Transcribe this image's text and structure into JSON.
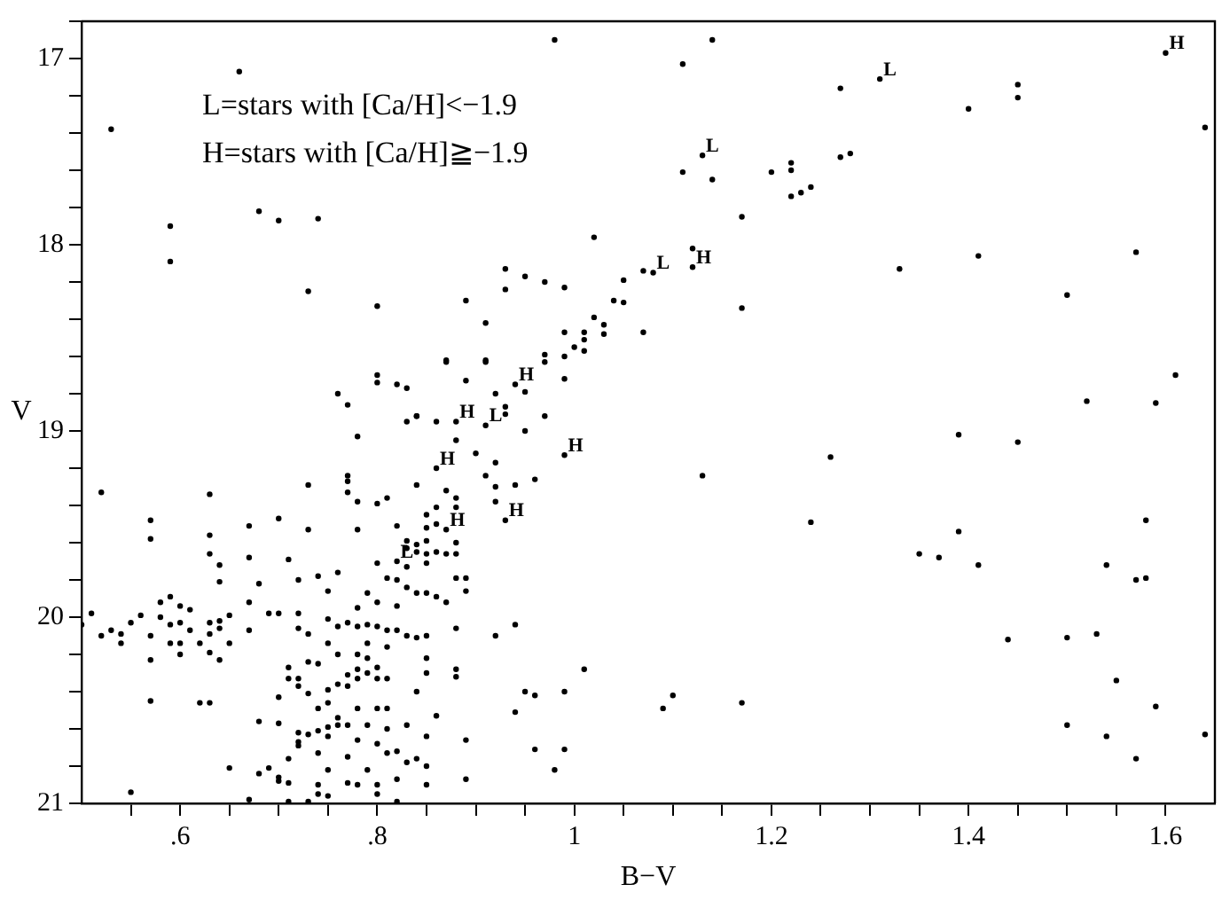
{
  "chart_data": {
    "type": "scatter",
    "xlabel": "B−V",
    "ylabel": "V",
    "color": "#000000",
    "marker": "circle",
    "grid": false,
    "legend": false,
    "xlim": [
      0.5,
      1.65
    ],
    "ylim": [
      21,
      16.8
    ],
    "xticks": [
      {
        "value": 0.55,
        "label": null
      },
      {
        "value": 0.6,
        "label": ".6"
      },
      {
        "value": 0.65,
        "label": null
      },
      {
        "value": 0.7,
        "label": null
      },
      {
        "value": 0.75,
        "label": null
      },
      {
        "value": 0.8,
        "label": ".8"
      },
      {
        "value": 0.85,
        "label": null
      },
      {
        "value": 0.9,
        "label": null
      },
      {
        "value": 0.95,
        "label": null
      },
      {
        "value": 1,
        "label": "1"
      },
      {
        "value": 1.05,
        "label": null
      },
      {
        "value": 1.1,
        "label": null
      },
      {
        "value": 1.15,
        "label": null
      },
      {
        "value": 1.2,
        "label": "1.2"
      },
      {
        "value": 1.25,
        "label": null
      },
      {
        "value": 1.3,
        "label": null
      },
      {
        "value": 1.35,
        "label": null
      },
      {
        "value": 1.4,
        "label": "1.4"
      },
      {
        "value": 1.45,
        "label": null
      },
      {
        "value": 1.5,
        "label": null
      },
      {
        "value": 1.55,
        "label": null
      },
      {
        "value": 1.6,
        "label": "1.6"
      }
    ],
    "yticks": [
      {
        "value": 16.8,
        "label": null
      },
      17,
      {
        "value": 17.2,
        "label": null
      },
      {
        "value": 17.4,
        "label": null
      },
      {
        "value": 17.6,
        "label": null
      },
      {
        "value": 17.8,
        "label": null
      },
      18,
      {
        "value": 18.2,
        "label": null
      },
      {
        "value": 18.4,
        "label": null
      },
      {
        "value": 18.6,
        "label": null
      },
      {
        "value": 18.8,
        "label": null
      },
      19,
      {
        "value": 19.2,
        "label": null
      },
      {
        "value": 19.4,
        "label": null
      },
      {
        "value": 19.6,
        "label": null
      },
      {
        "value": 19.8,
        "label": null
      },
      20,
      {
        "value": 20.2,
        "label": null
      },
      {
        "value": 20.4,
        "label": null
      },
      {
        "value": 20.6,
        "label": null
      },
      {
        "value": 20.8,
        "label": null
      },
      21
    ],
    "annotations": [
      "L=stars with [Ca/H]<−1.9",
      "H=stars with [Ca/H]≧−1.9",
      {
        "text": "L",
        "x": 1.13,
        "y": 17.52
      },
      {
        "text": "L",
        "x": 1.31,
        "y": 17.11
      },
      {
        "text": "H",
        "x": 1.6,
        "y": 16.97
      },
      {
        "text": "H",
        "x": 1.12,
        "y": 18.12
      },
      {
        "text": "L",
        "x": 1.08,
        "y": 18.15
      },
      {
        "text": "H",
        "x": 0.94,
        "y": 18.75
      },
      {
        "text": "H",
        "x": 0.88,
        "y": 18.95
      },
      {
        "text": "L",
        "x": 0.91,
        "y": 18.97
      },
      {
        "text": "H",
        "x": 0.99,
        "y": 19.13
      },
      {
        "text": "H",
        "x": 0.93,
        "y": 19.48
      },
      {
        "text": "H",
        "x": 0.86,
        "y": 19.2
      },
      {
        "text": "H",
        "x": 0.87,
        "y": 19.53
      },
      {
        "text": "L",
        "x": 0.82,
        "y": 19.7
      }
    ],
    "x": [
      0.53,
      0.66,
      0.59,
      0.59,
      0.68,
      0.7,
      0.74,
      0.73,
      0.8,
      0.87,
      0.8,
      0.8,
      0.82,
      0.83,
      0.76,
      0.77,
      0.84,
      0.98,
      1.11,
      1.14,
      1.11,
      1.14,
      1.2,
      1.22,
      1.22,
      1.22,
      1.23,
      1.24,
      1.27,
      1.27,
      1.17,
      1.02,
      1.12,
      1.07,
      0.93,
      0.95,
      0.93,
      0.97,
      0.99,
      1.05,
      1.04,
      1.05,
      1.17,
      0.89,
      0.91,
      1.02,
      1.03,
      1.03,
      0.99,
      1.01,
      1.01,
      1.07,
      0.97,
      0.97,
      0.99,
      1,
      1.01,
      0.91,
      0.91,
      0.87,
      0.89,
      0.99,
      0.92,
      0.95,
      0.93,
      0.93,
      0.97,
      1.45,
      1.45,
      1.4,
      1.64,
      1.28,
      1.33,
      1.41,
      1.57,
      1.5,
      1.61,
      1.52,
      1.59,
      1.26,
      1.39,
      1.45,
      1.58,
      1.39,
      1.35,
      1.37,
      1.41,
      1.54,
      1.57,
      1.58,
      1.44,
      1.5,
      1.53,
      1.55,
      1.59,
      1.5,
      1.54,
      1.57,
      1.64,
      1.13,
      1.24,
      0.95,
      0.88,
      0.9,
      0.92,
      0.91,
      0.92,
      0.94,
      0.96,
      0.92,
      0.88,
      0.88,
      0.88,
      0.88,
      0.88,
      0.89,
      0.89,
      0.88,
      0.92,
      0.94,
      0.88,
      0.88,
      1.01,
      0.95,
      0.96,
      0.99,
      0.94,
      1.09,
      1.1,
      1.17,
      0.89,
      0.96,
      0.99,
      0.98,
      0.89,
      0.83,
      0.84,
      0.86,
      0.78,
      0.77,
      0.77,
      0.77,
      0.73,
      0.84,
      0.78,
      0.8,
      0.81,
      0.87,
      0.86,
      0.85,
      0.86,
      0.85,
      0.78,
      0.82,
      0.73,
      0.7,
      0.67,
      0.63,
      0.57,
      0.57,
      0.52,
      0.63,
      0.63,
      0.64,
      0.64,
      0.67,
      0.71,
      0.68,
      0.72,
      0.74,
      0.76,
      0.75,
      0.8,
      0.81,
      0.82,
      0.83,
      0.83,
      0.84,
      0.85,
      0.83,
      0.84,
      0.85,
      0.86,
      0.85,
      0.87,
      0.83,
      0.84,
      0.79,
      0.8,
      0.78,
      0.85,
      0.86,
      0.87,
      0.82,
      0.58,
      0.6,
      0.59,
      0.61,
      0.65,
      0.67,
      0.69,
      0.51,
      0.56,
      0.55,
      0.58,
      0.59,
      0.6,
      0.63,
      0.64,
      0.5,
      0.52,
      0.53,
      0.54,
      0.54,
      0.57,
      0.59,
      0.6,
      0.61,
      0.62,
      0.63,
      0.64,
      0.65,
      0.67,
      0.6,
      0.63,
      0.64,
      0.57,
      0.57,
      0.62,
      0.63,
      0.75,
      0.76,
      0.77,
      0.78,
      0.79,
      0.8,
      0.81,
      0.82,
      0.83,
      0.84,
      0.85,
      0.73,
      0.72,
      0.72,
      0.7,
      0.75,
      0.79,
      0.76,
      0.78,
      0.79,
      0.81,
      0.73,
      0.74,
      0.8,
      0.85,
      0.85,
      0.78,
      0.79,
      0.77,
      0.71,
      0.71,
      0.72,
      0.72,
      0.76,
      0.77,
      0.78,
      0.8,
      0.81,
      0.75,
      0.73,
      0.7,
      0.74,
      0.75,
      0.78,
      0.8,
      0.81,
      0.84,
      0.86,
      0.76,
      0.76,
      0.75,
      0.77,
      0.79,
      0.68,
      0.7,
      0.72,
      0.72,
      0.72,
      0.73,
      0.74,
      0.75,
      0.78,
      0.81,
      0.83,
      0.85,
      0.77,
      0.74,
      0.71,
      0.8,
      0.81,
      0.82,
      0.83,
      0.84,
      0.85,
      0.75,
      0.79,
      0.65,
      0.68,
      0.69,
      0.7,
      0.7,
      0.71,
      0.74,
      0.74,
      0.77,
      0.78,
      0.8,
      0.82,
      0.85,
      0.67,
      0.71,
      0.73,
      0.82,
      0.55,
      0.8,
      0.75,
      1.13,
      1.31,
      1.6,
      1.12,
      1.08,
      0.94,
      0.88,
      0.91,
      0.99,
      0.93,
      0.86,
      0.87,
      0.82
    ],
    "values": [
      17.38,
      17.07,
      17.9,
      18.09,
      17.82,
      17.87,
      17.86,
      18.25,
      18.33,
      18.63,
      18.7,
      18.74,
      18.75,
      18.77,
      18.8,
      18.86,
      18.92,
      16.9,
      17.03,
      16.9,
      17.61,
      17.65,
      17.61,
      17.56,
      17.6,
      17.74,
      17.72,
      17.69,
      17.53,
      17.16,
      17.85,
      17.96,
      18.02,
      18.14,
      18.13,
      18.17,
      18.24,
      18.2,
      18.23,
      18.19,
      18.3,
      18.31,
      18.34,
      18.3,
      18.42,
      18.39,
      18.43,
      18.48,
      18.47,
      18.47,
      18.51,
      18.47,
      18.63,
      18.59,
      18.6,
      18.55,
      18.57,
      18.62,
      18.63,
      18.62,
      18.73,
      18.72,
      18.8,
      18.79,
      18.87,
      18.91,
      18.92,
      17.14,
      17.21,
      17.27,
      17.37,
      17.51,
      18.13,
      18.06,
      18.04,
      18.27,
      18.7,
      18.84,
      18.85,
      19.14,
      19.02,
      19.06,
      19.48,
      19.54,
      19.66,
      19.68,
      19.72,
      19.72,
      19.8,
      19.79,
      20.12,
      20.11,
      20.09,
      20.34,
      20.48,
      20.58,
      20.64,
      20.76,
      20.63,
      19.24,
      19.49,
      19,
      19.05,
      19.12,
      19.17,
      19.24,
      19.3,
      19.29,
      19.26,
      19.38,
      19.36,
      19.41,
      19.6,
      19.66,
      19.79,
      19.79,
      19.86,
      20.06,
      20.1,
      20.04,
      20.28,
      20.32,
      20.28,
      20.4,
      20.42,
      20.4,
      20.51,
      20.49,
      20.42,
      20.46,
      20.66,
      20.71,
      20.71,
      20.82,
      20.87,
      18.95,
      18.92,
      18.95,
      19.03,
      19.24,
      19.27,
      19.33,
      19.29,
      19.29,
      19.38,
      19.39,
      19.36,
      19.32,
      19.41,
      19.45,
      19.5,
      19.52,
      19.53,
      19.51,
      19.53,
      19.47,
      19.51,
      19.34,
      19.48,
      19.58,
      19.33,
      19.56,
      19.66,
      19.72,
      19.81,
      19.68,
      19.69,
      19.82,
      19.8,
      19.78,
      19.76,
      19.86,
      19.71,
      19.79,
      19.8,
      19.73,
      19.59,
      19.61,
      19.59,
      19.63,
      19.65,
      19.66,
      19.65,
      19.71,
      19.66,
      19.84,
      19.87,
      19.87,
      19.92,
      19.95,
      19.87,
      19.89,
      19.92,
      19.94,
      19.92,
      19.94,
      19.89,
      19.96,
      19.99,
      19.92,
      19.98,
      19.98,
      19.99,
      20.03,
      20,
      20.04,
      20.03,
      20.03,
      20.02,
      20.04,
      20.1,
      20.07,
      20.09,
      20.14,
      20.1,
      20.14,
      20.14,
      20.07,
      20.14,
      20.09,
      20.06,
      20.14,
      20.07,
      20.2,
      20.19,
      20.23,
      20.23,
      20.45,
      20.46,
      20.46,
      20.01,
      20.05,
      20.03,
      20.05,
      20.04,
      20.05,
      20.07,
      20.07,
      20.1,
      20.11,
      20.1,
      20.09,
      20.06,
      19.98,
      19.98,
      20.14,
      20.14,
      20.2,
      20.2,
      20.22,
      20.16,
      20.24,
      20.25,
      20.27,
      20.22,
      20.3,
      20.28,
      20.3,
      20.31,
      20.27,
      20.33,
      20.33,
      20.37,
      20.36,
      20.37,
      20.33,
      20.33,
      20.33,
      20.39,
      20.41,
      20.43,
      20.49,
      20.46,
      20.49,
      20.49,
      20.49,
      20.4,
      20.53,
      20.54,
      20.58,
      20.59,
      20.58,
      20.58,
      20.56,
      20.57,
      20.62,
      20.67,
      20.69,
      20.63,
      20.61,
      20.64,
      20.66,
      20.6,
      20.58,
      20.64,
      20.75,
      20.73,
      20.76,
      20.68,
      20.73,
      20.72,
      20.78,
      20.76,
      20.8,
      20.82,
      20.82,
      20.81,
      20.84,
      20.81,
      20.86,
      20.88,
      20.89,
      20.9,
      20.95,
      20.89,
      20.9,
      20.9,
      20.87,
      20.9,
      20.98,
      20.99,
      20.99,
      20.99,
      20.94,
      20.95,
      20.96,
      17.52,
      17.11,
      16.97,
      18.12,
      18.15,
      18.75,
      18.95,
      18.97,
      19.13,
      19.48,
      19.2,
      19.53,
      19.7
    ]
  }
}
